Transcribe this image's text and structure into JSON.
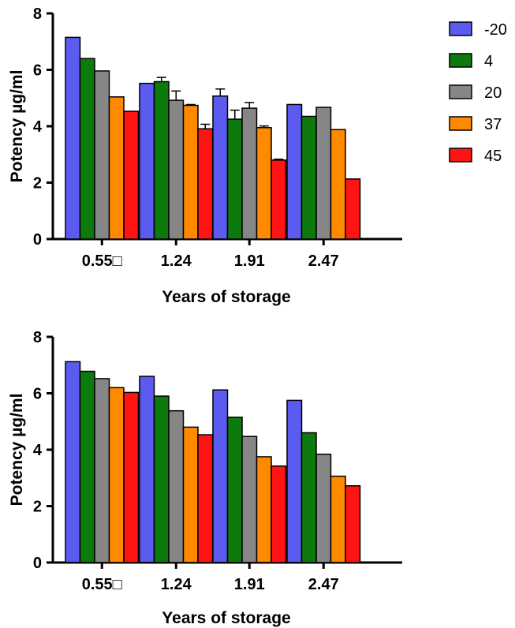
{
  "legend": {
    "entries": [
      {
        "label": "-20",
        "color": "#5b5bf0"
      },
      {
        "label": "4",
        "color": "#0c7a0c"
      },
      {
        "label": "20",
        "color": "#868686"
      },
      {
        "label": "37",
        "color": "#ff8a00"
      },
      {
        "label": "45",
        "color": "#ff1414"
      }
    ],
    "placement": "top-right"
  },
  "chart_data": [
    {
      "type": "bar",
      "xlabel": "Years of storage",
      "ylabel": "Potency µg/ml",
      "categories": [
        "0.55□",
        "1.24",
        "1.91",
        "2.47"
      ],
      "ylim": [
        0,
        8
      ],
      "yticks": [
        "0",
        "2",
        "4",
        "6",
        "8"
      ],
      "grid": false,
      "series": [
        {
          "name": "-20",
          "color": "#5b5bf0",
          "values": [
            7.15,
            5.52,
            5.07,
            4.77
          ],
          "errors": [
            0,
            0,
            0.25,
            0
          ]
        },
        {
          "name": "4",
          "color": "#0c7a0c",
          "values": [
            6.4,
            5.58,
            4.25,
            4.35
          ],
          "errors": [
            0,
            0.15,
            0.32,
            0
          ]
        },
        {
          "name": "20",
          "color": "#868686",
          "values": [
            5.96,
            4.92,
            4.64,
            4.67
          ],
          "errors": [
            0,
            0.33,
            0.2,
            0
          ]
        },
        {
          "name": "37",
          "color": "#ff8a00",
          "values": [
            5.04,
            4.74,
            3.95,
            3.88
          ],
          "errors": [
            0,
            0.03,
            0.06,
            0
          ]
        },
        {
          "name": "45",
          "color": "#ff1414",
          "values": [
            4.53,
            3.91,
            2.8,
            2.13
          ],
          "errors": [
            0,
            0.16,
            0.03,
            0
          ]
        }
      ]
    },
    {
      "type": "bar",
      "xlabel": "Years of storage",
      "ylabel": "Potency µg/ml",
      "categories": [
        "0.55□",
        "1.24",
        "1.91",
        "2.47"
      ],
      "ylim": [
        0,
        8
      ],
      "yticks": [
        "0",
        "2",
        "4",
        "6",
        "8"
      ],
      "grid": false,
      "series": [
        {
          "name": "-20",
          "color": "#5b5bf0",
          "values": [
            7.12,
            6.6,
            6.12,
            5.75
          ],
          "errors": [
            0,
            0,
            0,
            0
          ]
        },
        {
          "name": "4",
          "color": "#0c7a0c",
          "values": [
            6.78,
            5.9,
            5.15,
            4.6
          ],
          "errors": [
            0,
            0,
            0,
            0
          ]
        },
        {
          "name": "20",
          "color": "#868686",
          "values": [
            6.52,
            5.38,
            4.47,
            3.84
          ],
          "errors": [
            0,
            0,
            0,
            0
          ]
        },
        {
          "name": "37",
          "color": "#ff8a00",
          "values": [
            6.2,
            4.8,
            3.75,
            3.06
          ],
          "errors": [
            0,
            0,
            0,
            0
          ]
        },
        {
          "name": "45",
          "color": "#ff1414",
          "values": [
            6.03,
            4.53,
            3.42,
            2.72
          ],
          "errors": [
            0,
            0,
            0,
            0
          ]
        }
      ]
    }
  ]
}
